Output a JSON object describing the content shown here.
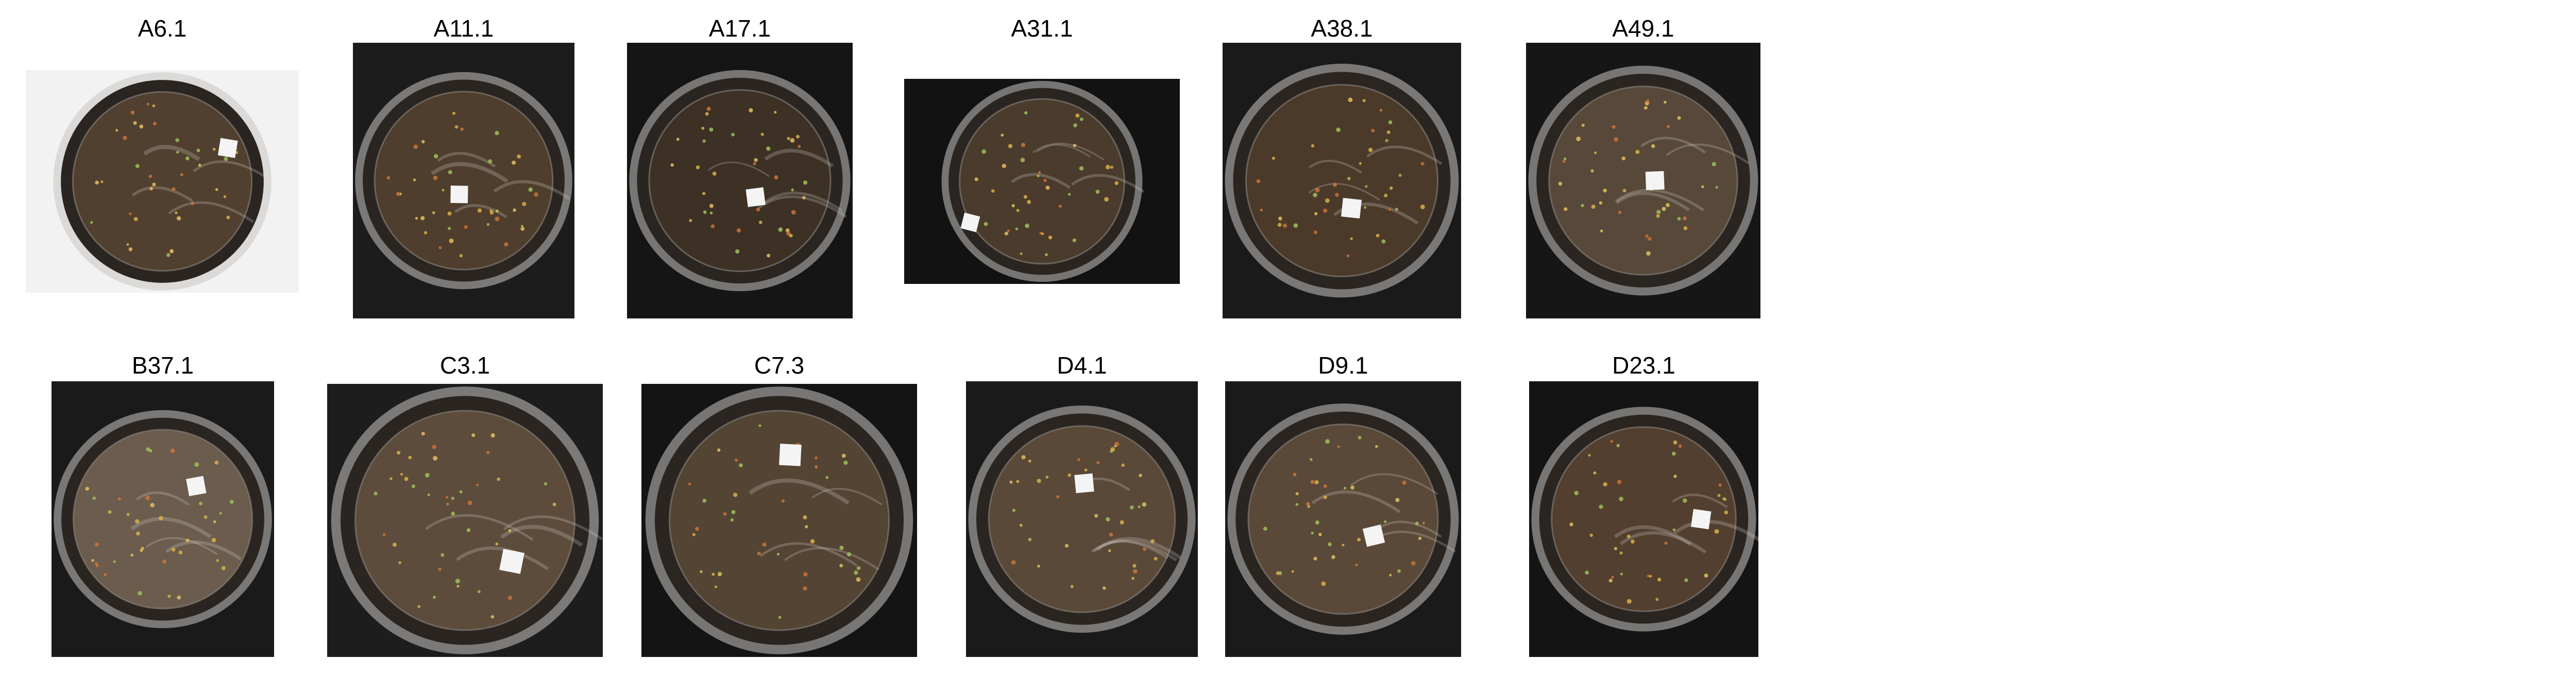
{
  "figure": {
    "panels": [
      {
        "label": "A6.1",
        "bg": "#f2f2f2",
        "soil": "#51402f",
        "card_x": 0.74,
        "card_y": 0.35
      },
      {
        "label": "A11.1",
        "bg": "#1c1c1c",
        "soil": "#4f3e2d",
        "card_x": 0.48,
        "card_y": 0.55
      },
      {
        "label": "A17.1",
        "bg": "#151515",
        "soil": "#3d3025",
        "card_x": 0.57,
        "card_y": 0.56
      },
      {
        "label": "A31.1",
        "bg": "#121212",
        "soil": "#4a3b2c",
        "card_x": 0.24,
        "card_y": 0.7
      },
      {
        "label": "A38.1",
        "bg": "#1a1a1a",
        "soil": "#4b3a2a",
        "card_x": 0.54,
        "card_y": 0.6
      },
      {
        "label": "A49.1",
        "bg": "#161616",
        "soil": "#574839",
        "card_x": 0.55,
        "card_y": 0.5
      },
      {
        "label": "B37.1",
        "bg": "#1a1a1a",
        "soil": "#6b5c4d",
        "card_x": 0.65,
        "card_y": 0.38
      },
      {
        "label": "C3.1",
        "bg": "#1d1d1d",
        "soil": "#5d4c3c",
        "card_x": 0.67,
        "card_y": 0.65
      },
      {
        "label": "C7.3",
        "bg": "#141414",
        "soil": "#544434",
        "card_x": 0.54,
        "card_y": 0.26
      },
      {
        "label": "D4.1",
        "bg": "#1a1a1a",
        "soil": "#5a4939",
        "card_x": 0.51,
        "card_y": 0.37
      },
      {
        "label": "D9.1",
        "bg": "#1a1a1a",
        "soil": "#5a4938",
        "card_x": 0.63,
        "card_y": 0.56
      },
      {
        "label": "D23.1",
        "bg": "#141414",
        "soil": "#533f2f",
        "card_x": 0.75,
        "card_y": 0.5
      }
    ]
  }
}
